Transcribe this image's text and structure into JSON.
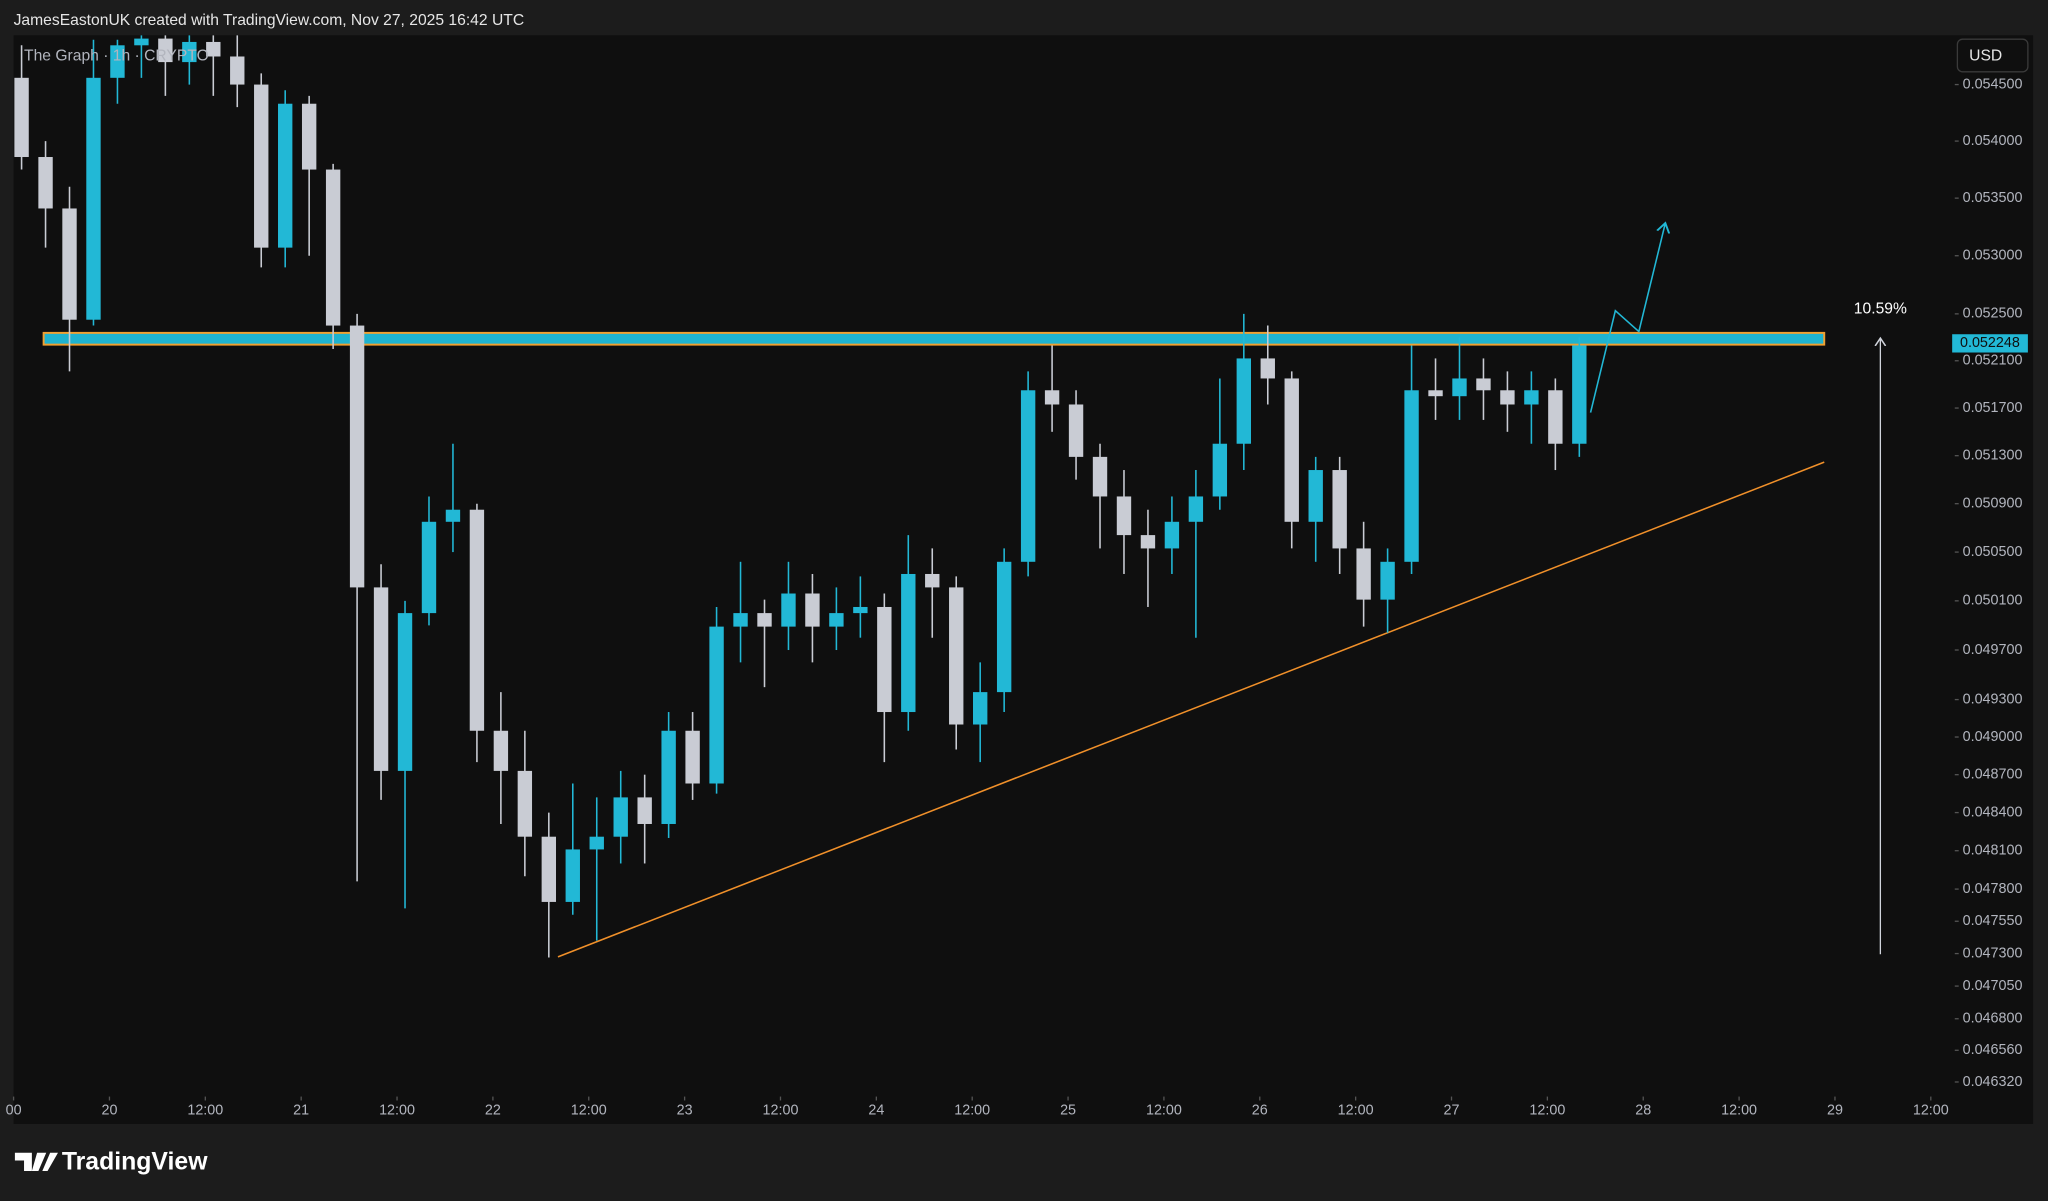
{
  "header": {
    "attribution": "JamesEastonUK created with TradingView.com, Nov 27, 2025 16:42 UTC"
  },
  "chart_data": {
    "type": "candlestick",
    "title": "The Graph · 1h · CRYPTO",
    "currency": "USD",
    "up_color": "#22b8d6",
    "down_color": "#c9ccd4",
    "log_scale": true,
    "xlim": [
      12,
      255
    ],
    "ylim": [
      0.04621,
      0.05494
    ],
    "x": [
      13,
      16,
      19,
      22,
      25,
      28,
      31,
      34,
      37,
      40,
      43,
      46,
      49,
      52,
      55,
      58,
      61,
      64,
      67,
      70,
      73,
      76,
      79,
      82,
      85,
      88,
      91,
      94,
      97,
      100,
      103,
      106,
      109,
      112,
      115,
      118,
      121,
      124,
      127,
      130,
      133,
      136,
      139,
      142,
      145,
      148,
      151,
      154,
      157,
      160,
      163,
      166,
      169,
      172,
      175,
      178,
      181,
      184,
      187,
      190,
      193,
      196,
      199,
      202,
      205,
      208
    ],
    "candles": [
      [
        0.05456,
        0.05485,
        0.05375,
        0.05386
      ],
      [
        0.05386,
        0.054,
        0.05307,
        0.05341
      ],
      [
        0.05341,
        0.0536,
        0.05201,
        0.05245
      ],
      [
        0.05245,
        0.0549,
        0.0524,
        0.05456
      ],
      [
        0.05456,
        0.0549,
        0.05433,
        0.05485
      ],
      [
        0.05485,
        0.05494,
        0.05456,
        0.05491
      ],
      [
        0.05491,
        0.05494,
        0.0544,
        0.0547
      ],
      [
        0.0547,
        0.05494,
        0.0545,
        0.05488
      ],
      [
        0.05488,
        0.05494,
        0.0544,
        0.05475
      ],
      [
        0.05475,
        0.05494,
        0.0543,
        0.0545
      ],
      [
        0.0545,
        0.0546,
        0.0529,
        0.05307
      ],
      [
        0.05307,
        0.05445,
        0.0529,
        0.05433
      ],
      [
        0.05433,
        0.0544,
        0.053,
        0.05375
      ],
      [
        0.05375,
        0.0538,
        0.0522,
        0.0524
      ],
      [
        0.0524,
        0.0525,
        0.04786,
        0.05021
      ],
      [
        0.05021,
        0.0504,
        0.0485,
        0.04873
      ],
      [
        0.04873,
        0.0501,
        0.04765,
        0.05
      ],
      [
        0.05,
        0.05096,
        0.0499,
        0.05075
      ],
      [
        0.05075,
        0.0514,
        0.0505,
        0.05085
      ],
      [
        0.05085,
        0.0509,
        0.0488,
        0.04905
      ],
      [
        0.04905,
        0.04936,
        0.04831,
        0.04873
      ],
      [
        0.04873,
        0.04905,
        0.0479,
        0.04821
      ],
      [
        0.04821,
        0.0484,
        0.04727,
        0.0477
      ],
      [
        0.0477,
        0.04863,
        0.0476,
        0.04811
      ],
      [
        0.04811,
        0.04852,
        0.0474,
        0.04821
      ],
      [
        0.04821,
        0.04873,
        0.048,
        0.04852
      ],
      [
        0.04852,
        0.0487,
        0.048,
        0.04831
      ],
      [
        0.04831,
        0.0492,
        0.0482,
        0.04905
      ],
      [
        0.04905,
        0.0492,
        0.0485,
        0.04863
      ],
      [
        0.04863,
        0.05005,
        0.04855,
        0.04989
      ],
      [
        0.04989,
        0.05042,
        0.0496,
        0.05
      ],
      [
        0.05,
        0.05011,
        0.0494,
        0.04989
      ],
      [
        0.04989,
        0.05042,
        0.0497,
        0.05016
      ],
      [
        0.05016,
        0.05032,
        0.0496,
        0.04989
      ],
      [
        0.04989,
        0.05021,
        0.0497,
        0.05
      ],
      [
        0.05,
        0.0503,
        0.0498,
        0.05005
      ],
      [
        0.05005,
        0.05016,
        0.0488,
        0.0492
      ],
      [
        0.0492,
        0.05064,
        0.04905,
        0.05032
      ],
      [
        0.05032,
        0.05053,
        0.0498,
        0.05021
      ],
      [
        0.05021,
        0.0503,
        0.0489,
        0.0491
      ],
      [
        0.0491,
        0.0496,
        0.0488,
        0.04936
      ],
      [
        0.04936,
        0.05053,
        0.0492,
        0.05042
      ],
      [
        0.05042,
        0.05201,
        0.0503,
        0.05185
      ],
      [
        0.05185,
        0.05223,
        0.0515,
        0.05173
      ],
      [
        0.05173,
        0.05185,
        0.0511,
        0.05129
      ],
      [
        0.05129,
        0.0514,
        0.05053,
        0.05096
      ],
      [
        0.05096,
        0.05118,
        0.05032,
        0.05064
      ],
      [
        0.05064,
        0.05085,
        0.05005,
        0.05053
      ],
      [
        0.05053,
        0.05096,
        0.05032,
        0.05075
      ],
      [
        0.05075,
        0.05118,
        0.0498,
        0.05096
      ],
      [
        0.05096,
        0.05195,
        0.05085,
        0.0514
      ],
      [
        0.0514,
        0.0525,
        0.05118,
        0.05212
      ],
      [
        0.05212,
        0.0524,
        0.05173,
        0.05195
      ],
      [
        0.05195,
        0.05201,
        0.05053,
        0.05075
      ],
      [
        0.05075,
        0.05129,
        0.05042,
        0.05118
      ],
      [
        0.05118,
        0.05129,
        0.05032,
        0.05053
      ],
      [
        0.05053,
        0.05075,
        0.04989,
        0.05011
      ],
      [
        0.05011,
        0.05053,
        0.04984,
        0.05042
      ],
      [
        0.05042,
        0.05223,
        0.05032,
        0.05185
      ],
      [
        0.05185,
        0.05212,
        0.0516,
        0.0518
      ],
      [
        0.0518,
        0.0523,
        0.0516,
        0.05195
      ],
      [
        0.05195,
        0.05212,
        0.0516,
        0.05185
      ],
      [
        0.05185,
        0.05201,
        0.0515,
        0.05173
      ],
      [
        0.05173,
        0.05201,
        0.0514,
        0.05185
      ],
      [
        0.05185,
        0.05195,
        0.05118,
        0.0514
      ],
      [
        0.0514,
        0.0523,
        0.05129,
        0.05223
      ]
    ],
    "yticks": [
      {
        "value": 0.0545,
        "label": "0.054500"
      },
      {
        "value": 0.054,
        "label": "0.054000"
      },
      {
        "value": 0.0535,
        "label": "0.053500"
      },
      {
        "value": 0.053,
        "label": "0.053000"
      },
      {
        "value": 0.0525,
        "label": "0.052500"
      },
      {
        "value": 0.0521,
        "label": "0.052100"
      },
      {
        "value": 0.0517,
        "label": "0.051700"
      },
      {
        "value": 0.0513,
        "label": "0.051300"
      },
      {
        "value": 0.0509,
        "label": "0.050900"
      },
      {
        "value": 0.0505,
        "label": "0.050500"
      },
      {
        "value": 0.0501,
        "label": "0.050100"
      },
      {
        "value": 0.0497,
        "label": "0.049700"
      },
      {
        "value": 0.0493,
        "label": "0.049300"
      },
      {
        "value": 0.049,
        "label": "0.049000"
      },
      {
        "value": 0.0487,
        "label": "0.048700"
      },
      {
        "value": 0.0484,
        "label": "0.048400"
      },
      {
        "value": 0.0481,
        "label": "0.048100"
      },
      {
        "value": 0.0478,
        "label": "0.047800"
      },
      {
        "value": 0.04755,
        "label": "0.047550"
      },
      {
        "value": 0.0473,
        "label": "0.047300"
      },
      {
        "value": 0.04705,
        "label": "0.047050"
      },
      {
        "value": 0.0468,
        "label": "0.046800"
      },
      {
        "value": 0.04656,
        "label": "0.046560"
      },
      {
        "value": 0.04632,
        "label": "0.046320"
      }
    ],
    "xticks": [
      {
        "value": 12,
        "label": "00"
      },
      {
        "value": 24,
        "label": "20"
      },
      {
        "value": 36,
        "label": "12:00"
      },
      {
        "value": 48,
        "label": "21"
      },
      {
        "value": 60,
        "label": "12:00"
      },
      {
        "value": 72,
        "label": "22"
      },
      {
        "value": 84,
        "label": "12:00"
      },
      {
        "value": 96,
        "label": "23"
      },
      {
        "value": 108,
        "label": "12:00"
      },
      {
        "value": 120,
        "label": "24"
      },
      {
        "value": 132,
        "label": "12:00"
      },
      {
        "value": 144,
        "label": "25"
      },
      {
        "value": 156,
        "label": "12:00"
      },
      {
        "value": 168,
        "label": "26"
      },
      {
        "value": 180,
        "label": "12:00"
      },
      {
        "value": 192,
        "label": "27"
      },
      {
        "value": 204,
        "label": "12:00"
      },
      {
        "value": 216,
        "label": "28"
      },
      {
        "value": 228,
        "label": "12:00"
      },
      {
        "value": 240,
        "label": "29"
      },
      {
        "value": 252,
        "label": "12:00"
      }
    ],
    "last_price": {
      "value": 0.052248,
      "label": "0.052248"
    },
    "annotation": "10.59%"
  },
  "footer": {
    "brand": "TradingView"
  }
}
